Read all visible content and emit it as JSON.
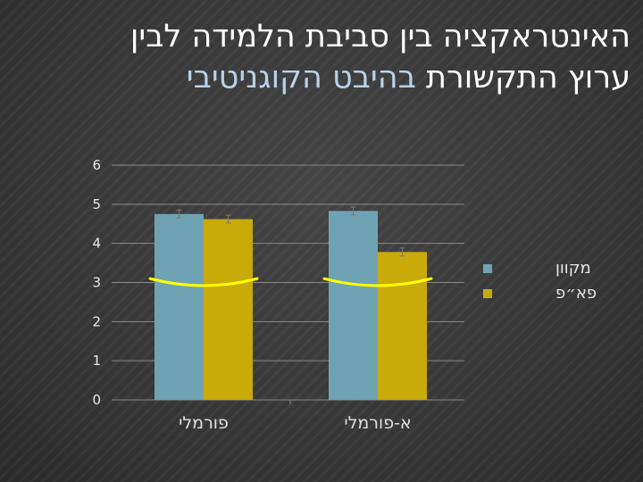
{
  "slide": {
    "title_line1": "האינטראקציה בין סביבת הלמידה לבין",
    "title_line2_a": "ערוץ התקשורת ",
    "title_line2_b": "בהיבט הקוגניטיבי",
    "accent_color": "#b9d1ea"
  },
  "chart_data": {
    "type": "bar",
    "categories": [
      "פורמלי",
      "א-פורמלי"
    ],
    "series": [
      {
        "name": "מקוון",
        "values": [
          4.75,
          4.83
        ],
        "errors": [
          0.1,
          0.1
        ],
        "color": "#6fa3b4"
      },
      {
        "name": "פא״פ",
        "values": [
          4.62,
          3.78
        ],
        "errors": [
          0.1,
          0.1
        ],
        "color": "#c8aa0a"
      }
    ],
    "ylim": [
      0,
      6
    ],
    "yticks": [
      "0",
      "1",
      "2",
      "3",
      "4",
      "5",
      "6"
    ],
    "grid": true,
    "legend": "right",
    "annotation_color": "#ffff00"
  }
}
